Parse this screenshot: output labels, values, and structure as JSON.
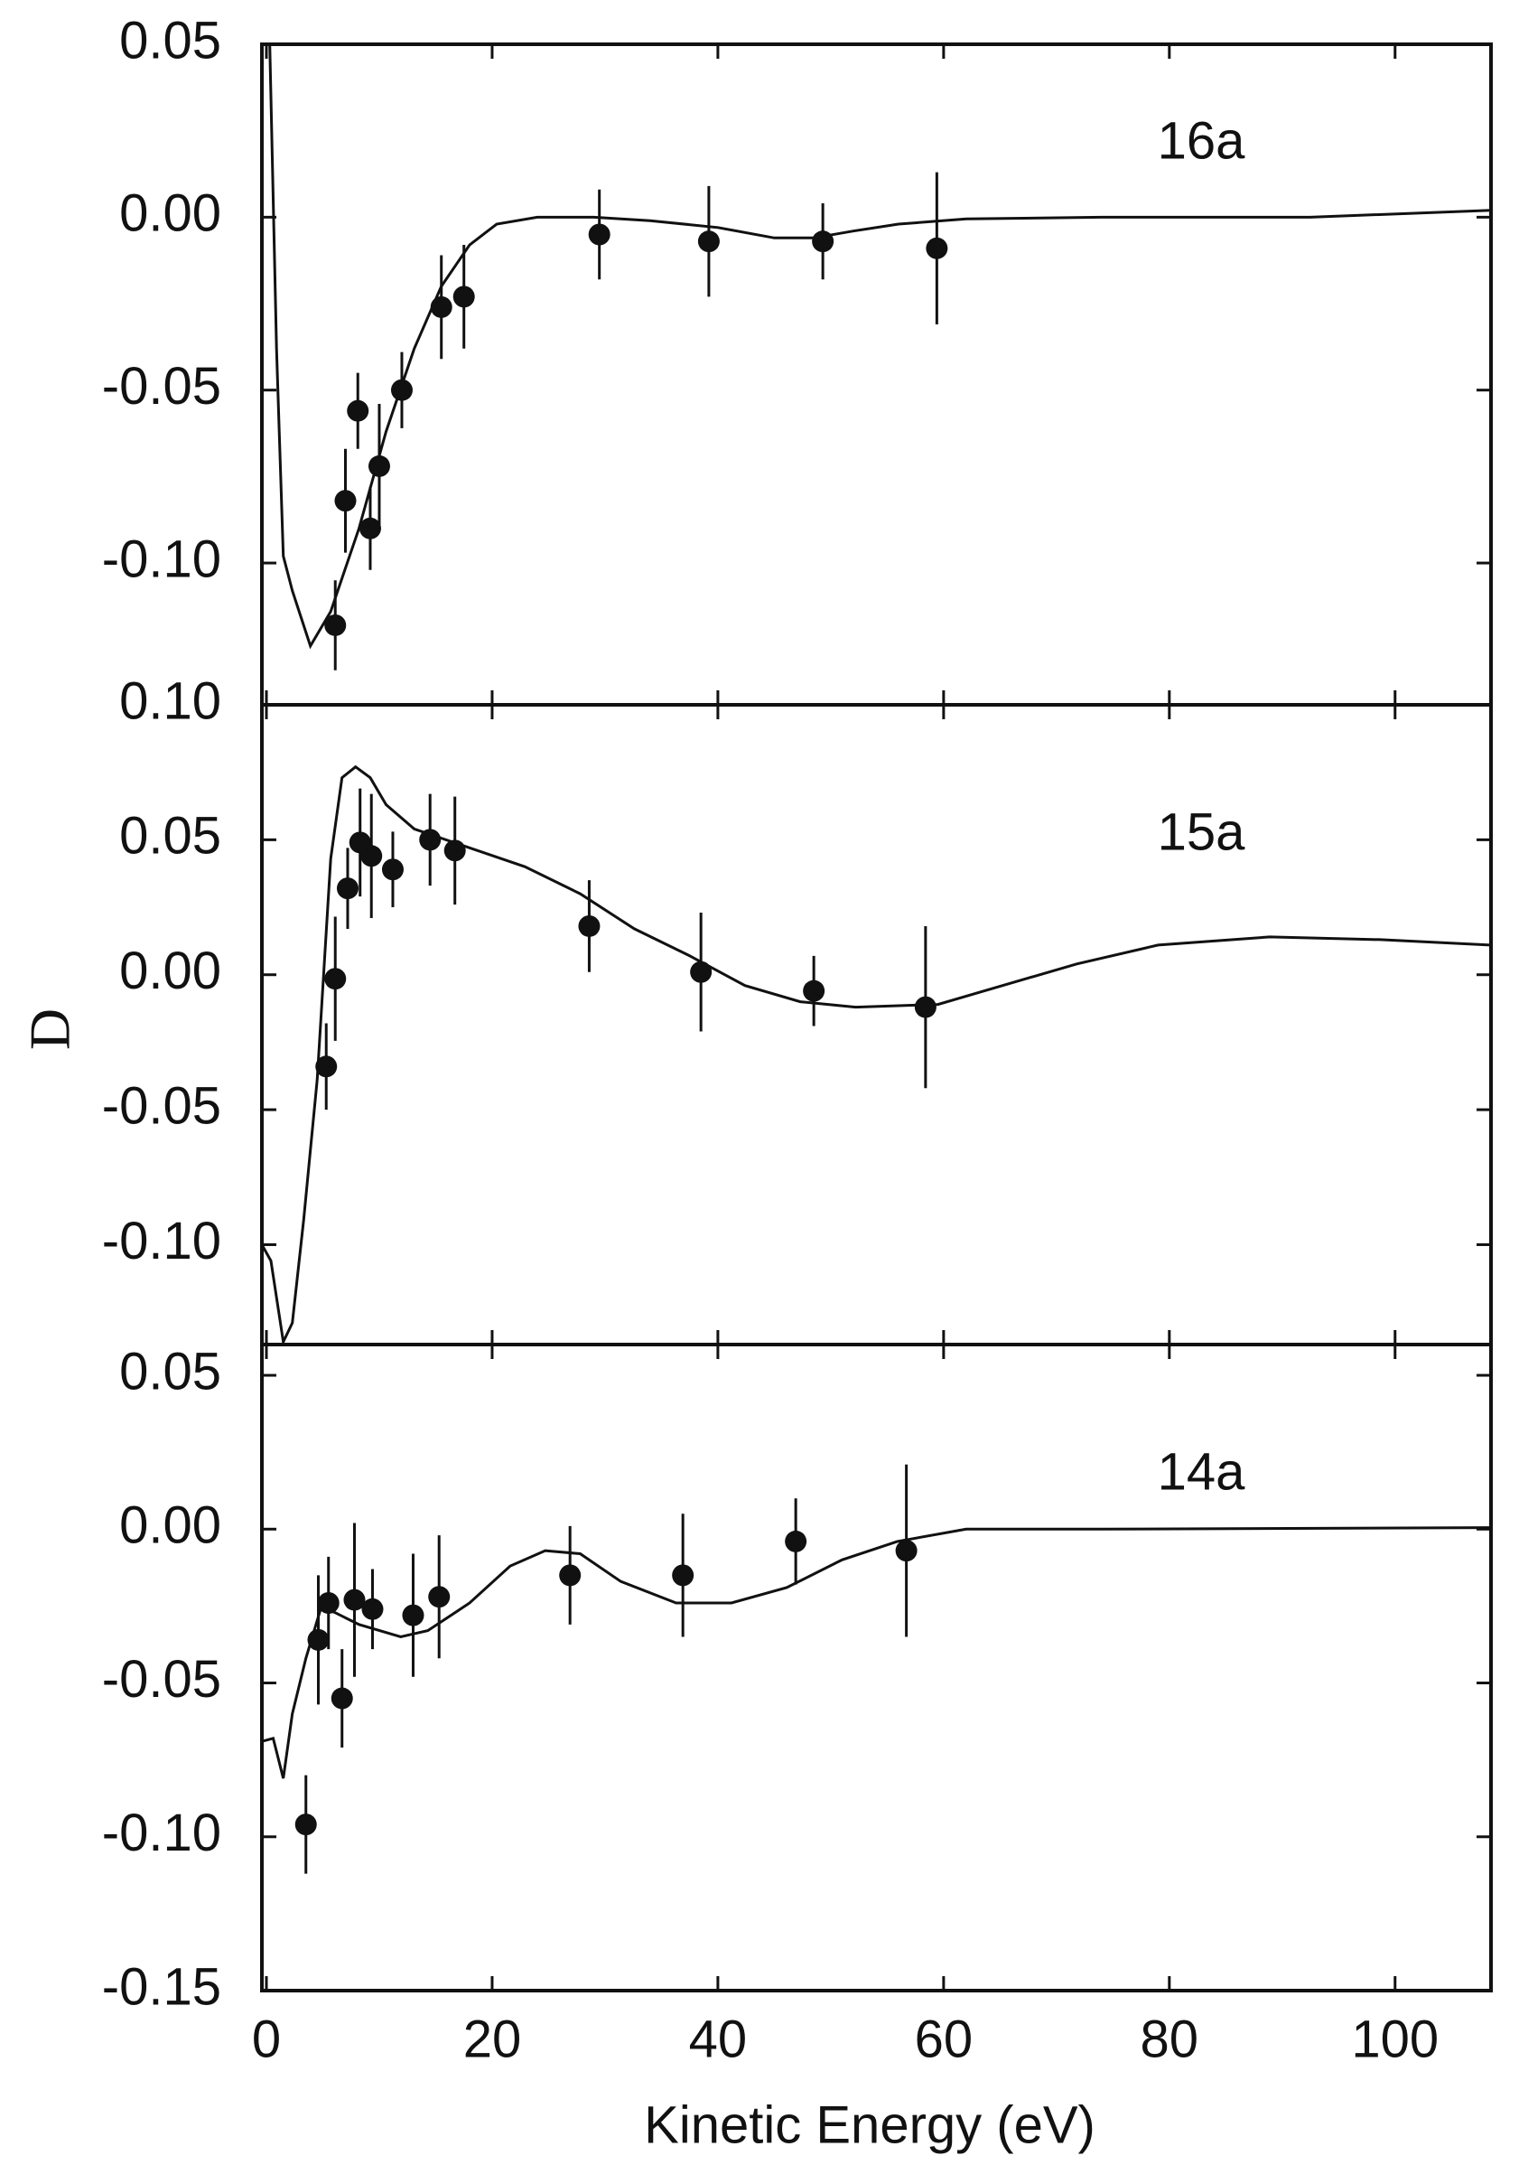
{
  "chart_data": [
    {
      "type": "scatter",
      "annotation": "16a",
      "x": [
        6.1,
        7.0,
        8.1,
        9.2,
        10.0,
        12.0,
        15.5,
        17.5,
        29.5,
        39.2,
        49.3,
        59.4
      ],
      "values": [
        -0.118,
        -0.082,
        -0.056,
        -0.09,
        -0.072,
        -0.05,
        -0.026,
        -0.023,
        -0.005,
        -0.007,
        -0.007,
        -0.009
      ],
      "errors": [
        0.013,
        0.015,
        0.011,
        0.012,
        0.018,
        0.011,
        0.015,
        0.015,
        0.013,
        0.016,
        0.011,
        0.022
      ],
      "curve": {
        "x": [
          0.3,
          0.9,
          1.5,
          2.3,
          3.9,
          5.7,
          8.2,
          10.6,
          13.1,
          15.5,
          18,
          20.4,
          24,
          29,
          34,
          40,
          45,
          48.5,
          52,
          56,
          62,
          74,
          92.5,
          108.5
        ],
        "values": [
          0.05,
          -0.038,
          -0.098,
          -0.108,
          -0.124,
          -0.114,
          -0.09,
          -0.062,
          -0.038,
          -0.02,
          -0.008,
          -0.002,
          0.0,
          0.0,
          -0.001,
          -0.003,
          -0.006,
          -0.006,
          -0.004,
          -0.002,
          -0.0005,
          0.0,
          0.0,
          0.002
        ]
      },
      "xlim": [
        -0.4,
        108.5
      ],
      "xticks": [
        0,
        20,
        40,
        60,
        80,
        100
      ],
      "ylim": [
        -0.141,
        0.05
      ],
      "yticks": [
        {
          "value": 0.05,
          "label": "0.05"
        },
        {
          "value": 0,
          "label": "0.00"
        },
        {
          "value": -0.05,
          "label": "-0.05"
        },
        {
          "value": -0.1,
          "label": "-0.10"
        }
      ]
    },
    {
      "type": "scatter",
      "annotation": "15a",
      "ylabel": "D",
      "x": [
        5.3,
        6.1,
        7.2,
        8.3,
        9.3,
        11.2,
        14.5,
        16.7,
        28.6,
        38.5,
        48.5,
        58.4
      ],
      "values": [
        -0.034,
        -0.0015,
        0.032,
        0.049,
        0.044,
        0.039,
        0.05,
        0.046,
        0.018,
        0.001,
        -0.006,
        -0.012
      ],
      "errors": [
        0.016,
        0.023,
        0.015,
        0.02,
        0.023,
        0.014,
        0.017,
        0.02,
        0.017,
        0.022,
        0.013,
        0.03
      ],
      "curve": {
        "x": [
          -0.4,
          0.4,
          1.5,
          2.3,
          3.3,
          4.5,
          5.7,
          6.7,
          7.9,
          9.2,
          10.6,
          13.1,
          18,
          22.9,
          27.8,
          32.6,
          37.5,
          42.4,
          47.3,
          52.2,
          59.5,
          64.4,
          71.8,
          79,
          88.9,
          98.7,
          108.4
        ],
        "values": [
          -0.1,
          -0.106,
          -0.136,
          -0.129,
          -0.091,
          -0.039,
          0.043,
          0.073,
          0.077,
          0.073,
          0.063,
          0.054,
          0.047,
          0.04,
          0.03,
          0.017,
          0.007,
          -0.004,
          -0.01,
          -0.012,
          -0.011,
          -0.005,
          0.004,
          0.011,
          0.014,
          0.013,
          0.011
        ]
      },
      "xlim": [
        -0.4,
        108.5
      ],
      "xticks": [
        0,
        20,
        40,
        60,
        80,
        100
      ],
      "ylim": [
        -0.137,
        0.1
      ],
      "yticks": [
        {
          "value": 0.1,
          "label": "0.10"
        },
        {
          "value": 0.05,
          "label": "0.05"
        },
        {
          "value": 0,
          "label": "0.00"
        },
        {
          "value": -0.05,
          "label": "-0.05"
        },
        {
          "value": -0.1,
          "label": "-0.10"
        }
      ]
    },
    {
      "type": "scatter",
      "annotation": "14a",
      "xlabel": "Kinetic Energy (eV)",
      "x": [
        3.5,
        4.6,
        5.5,
        6.7,
        7.8,
        9.4,
        13,
        15.3,
        26.9,
        36.9,
        46.9,
        56.7
      ],
      "values": [
        -0.096,
        -0.036,
        -0.024,
        -0.055,
        -0.023,
        -0.026,
        -0.028,
        -0.022,
        -0.015,
        -0.015,
        -0.004,
        -0.007
      ],
      "errors": [
        0.016,
        0.021,
        0.015,
        0.016,
        0.025,
        0.013,
        0.02,
        0.02,
        0.016,
        0.02,
        0.014,
        0.028
      ],
      "curve": {
        "x": [
          -0.4,
          0.6,
          1.5,
          2.3,
          3.5,
          4.8,
          6,
          8.2,
          11.9,
          14.3,
          18,
          21.6,
          24.7,
          27.8,
          31.4,
          36.3,
          41.2,
          46.1,
          51,
          55.9,
          62,
          74.2,
          108.4
        ],
        "values": [
          -0.069,
          -0.068,
          -0.081,
          -0.06,
          -0.042,
          -0.026,
          -0.027,
          -0.031,
          -0.035,
          -0.033,
          -0.024,
          -0.012,
          -0.007,
          -0.008,
          -0.017,
          -0.024,
          -0.024,
          -0.019,
          -0.01,
          -0.004,
          0.0,
          0.0,
          0.0005
        ]
      },
      "xlim": [
        -0.4,
        108.5
      ],
      "xticks": [
        0,
        20,
        40,
        60,
        80,
        100
      ],
      "ylim": [
        -0.15,
        0.06
      ],
      "yticks": [
        {
          "value": 0.05,
          "label": "0.05"
        },
        {
          "value": 0,
          "label": "0.00"
        },
        {
          "value": -0.05,
          "label": "-0.05"
        },
        {
          "value": -0.1,
          "label": "-0.10"
        },
        {
          "value": -0.15,
          "label": "-0.15"
        }
      ]
    }
  ]
}
